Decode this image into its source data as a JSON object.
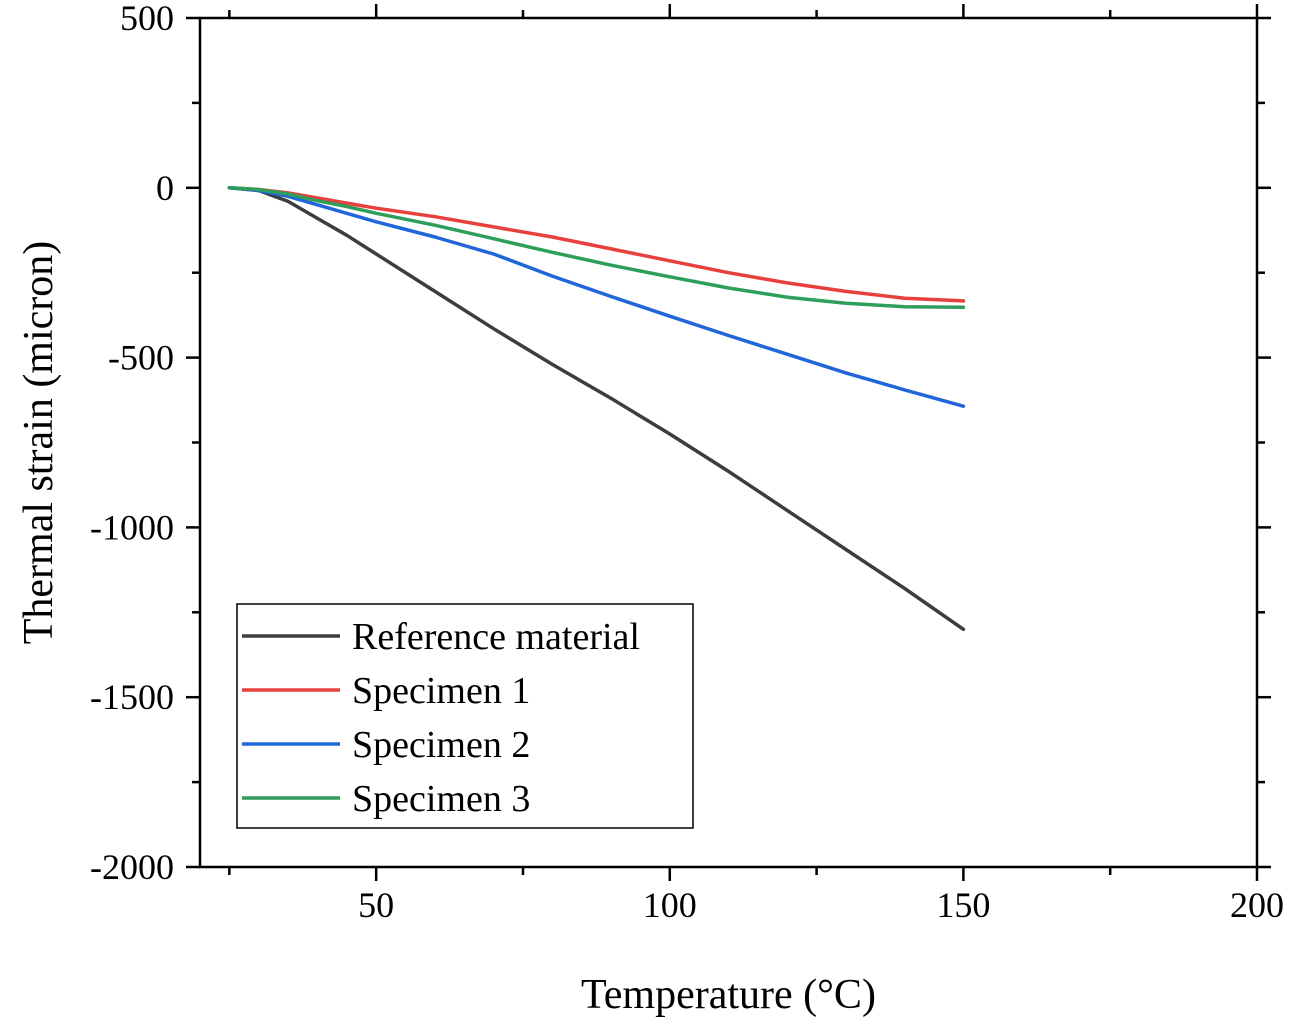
{
  "chart_data": {
    "type": "line",
    "xlabel": "Temperature (°C)",
    "ylabel": "Thermal strain (micron)",
    "xlim": [
      20,
      200
    ],
    "ylim": [
      -2000,
      500
    ],
    "xticks": [
      50,
      100,
      150,
      200
    ],
    "xtick_labels": [
      "50",
      "100",
      "150",
      "200"
    ],
    "yticks": [
      500,
      0,
      -500,
      -1000,
      -1500,
      -2000
    ],
    "ytick_labels": [
      "500",
      "0",
      "-500",
      "-1000",
      "-1500",
      "-2000"
    ],
    "grid": false,
    "legend_position": "bottom-left",
    "series": [
      {
        "name": "Reference material",
        "color": "#3d3d3d",
        "x": [
          25,
          30,
          35,
          40,
          45,
          50,
          60,
          70,
          80,
          90,
          100,
          110,
          120,
          130,
          140,
          150
        ],
        "y": [
          0,
          -8,
          -40,
          -90,
          -140,
          -195,
          -305,
          -415,
          -520,
          -620,
          -725,
          -835,
          -950,
          -1065,
          -1180,
          -1300
        ]
      },
      {
        "name": "Specimen 1",
        "color": "#e8403d",
        "x": [
          25,
          30,
          35,
          40,
          45,
          50,
          60,
          70,
          80,
          90,
          100,
          110,
          120,
          130,
          140,
          150
        ],
        "y": [
          0,
          -5,
          -15,
          -30,
          -45,
          -60,
          -85,
          -115,
          -145,
          -180,
          -215,
          -250,
          -280,
          -305,
          -325,
          -333
        ]
      },
      {
        "name": "Specimen 2",
        "color": "#2166d8",
        "x": [
          25,
          30,
          35,
          40,
          45,
          50,
          60,
          70,
          80,
          90,
          100,
          110,
          120,
          130,
          140,
          150
        ],
        "y": [
          0,
          -8,
          -25,
          -50,
          -75,
          -100,
          -145,
          -195,
          -260,
          -320,
          -378,
          -435,
          -490,
          -545,
          -595,
          -643
        ]
      },
      {
        "name": "Specimen 3",
        "color": "#2e9e5b",
        "x": [
          25,
          30,
          35,
          40,
          45,
          50,
          60,
          70,
          80,
          90,
          100,
          110,
          120,
          130,
          140,
          150
        ],
        "y": [
          0,
          -5,
          -18,
          -38,
          -55,
          -75,
          -110,
          -150,
          -190,
          -228,
          -262,
          -295,
          -322,
          -340,
          -350,
          -352
        ]
      }
    ]
  }
}
